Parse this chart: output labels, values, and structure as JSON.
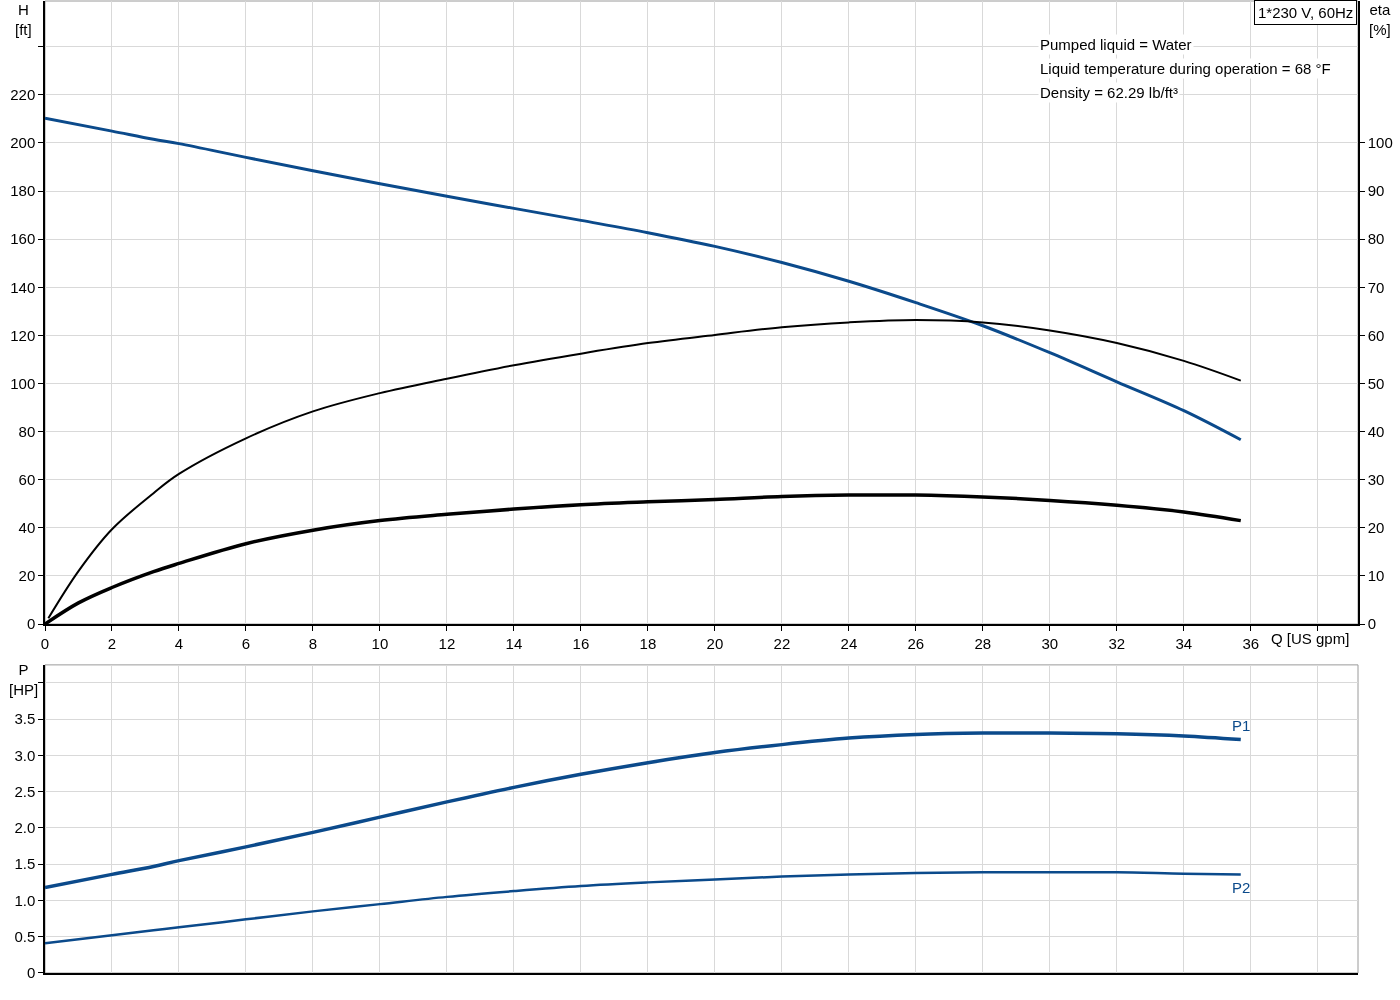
{
  "chart_data": [
    {
      "type": "line",
      "xlabel": "Q [US gpm]",
      "ylabel": "H [ft]",
      "y2label": "eta [%]",
      "grid": true,
      "xlim": [
        0,
        39.2
      ],
      "xticks": [
        0,
        2,
        4,
        6,
        8,
        10,
        12,
        14,
        16,
        18,
        20,
        22,
        24,
        26,
        28,
        30,
        32,
        34,
        36,
        {
          "value": 38,
          "label": null
        }
      ],
      "ylim": [
        0,
        259
      ],
      "yticks": [
        0,
        20,
        40,
        60,
        80,
        100,
        120,
        140,
        160,
        180,
        200,
        220,
        {
          "value": 240,
          "label": null
        }
      ],
      "y2lim": [
        0,
        129.5
      ],
      "y2ticks": [
        0,
        10,
        20,
        30,
        40,
        50,
        60,
        70,
        80,
        90,
        100
      ],
      "annotations": [
        "1*230 V, 60Hz",
        "Pumped liquid = Water",
        "Liquid temperature during operation = 68 °F",
        "Density = 62.29 lb/ft³"
      ],
      "series": [
        {
          "color": "#0b4a8b",
          "x": [
            0,
            2,
            3.24,
            4,
            6,
            8,
            10,
            12,
            14,
            16,
            18,
            20,
            22,
            24,
            26,
            28,
            30,
            32,
            34,
            35.7
          ],
          "values": [
            210.3,
            204.9,
            201.5,
            199.7,
            194.0,
            188.4,
            183.0,
            177.8,
            172.8,
            167.8,
            162.7,
            157.0,
            150.3,
            142.5,
            133.6,
            124.0,
            112.8,
            100.7,
            88.7,
            76.6
          ]
        },
        {
          "color": "#000000",
          "axis": "y2",
          "x": [
            0.1,
            1,
            2,
            3.24,
            4,
            6,
            8,
            10,
            12,
            14,
            16,
            18,
            20,
            22,
            24,
            26,
            28,
            30,
            32,
            34,
            35.7
          ],
          "values": [
            1.2,
            11,
            19.7,
            27.2,
            31.2,
            38.6,
            44.2,
            48.0,
            51.0,
            53.8,
            56.2,
            58.4,
            60.1,
            61.7,
            62.7,
            63.2,
            62.7,
            61.0,
            58.4,
            54.7,
            50.6
          ]
        },
        {
          "color": "#000000",
          "axis": "y2",
          "x": [
            0,
            1,
            2,
            3.24,
            4,
            6,
            8,
            10,
            12,
            14,
            16,
            18,
            20,
            22,
            24,
            26,
            28,
            30,
            32,
            34,
            35.7
          ],
          "values": [
            0,
            4.4,
            7.6,
            10.9,
            12.6,
            16.7,
            19.5,
            21.5,
            22.8,
            23.9,
            24.8,
            25.4,
            25.9,
            26.5,
            26.8,
            26.8,
            26.4,
            25.7,
            24.7,
            23.3,
            21.5
          ]
        }
      ]
    },
    {
      "type": "line",
      "ylabel": "P [HP]",
      "grid": true,
      "tick_labels": "y",
      "xlim": [
        0,
        39.2
      ],
      "xticks": [
        0,
        2,
        4,
        6,
        8,
        10,
        12,
        14,
        16,
        18,
        20,
        22,
        24,
        26,
        28,
        30,
        32,
        34,
        36,
        {
          "value": 38,
          "label": null
        }
      ],
      "ylim": [
        0,
        4.25
      ],
      "yticks": [
        0,
        0.5,
        {
          "value": 1,
          "label": "1.0"
        },
        1.5,
        {
          "value": 2,
          "label": "2.0"
        },
        2.5,
        {
          "value": 3,
          "label": "3.0"
        },
        3.5,
        {
          "value": 4,
          "label": null
        }
      ],
      "series": [
        {
          "name": "P1",
          "color": "#0b4a8b",
          "x": [
            0,
            2,
            3.24,
            4,
            6,
            8,
            10,
            12,
            14,
            16,
            18,
            20,
            22,
            24,
            26,
            28,
            30,
            32,
            34,
            35.7
          ],
          "values": [
            1.18,
            1.36,
            1.47,
            1.55,
            1.74,
            1.94,
            2.15,
            2.36,
            2.56,
            2.74,
            2.9,
            3.04,
            3.15,
            3.24,
            3.29,
            3.31,
            3.31,
            3.3,
            3.27,
            3.22
          ]
        },
        {
          "name": "P2",
          "color": "#0b4a8b",
          "x": [
            0,
            2,
            3.24,
            4,
            6,
            8,
            10,
            12,
            14,
            16,
            18,
            20,
            22,
            24,
            26,
            28,
            30,
            32,
            34,
            35.7
          ],
          "values": [
            0.41,
            0.52,
            0.59,
            0.63,
            0.74,
            0.85,
            0.95,
            1.05,
            1.13,
            1.2,
            1.25,
            1.29,
            1.33,
            1.36,
            1.38,
            1.39,
            1.39,
            1.39,
            1.37,
            1.36
          ]
        }
      ]
    }
  ]
}
